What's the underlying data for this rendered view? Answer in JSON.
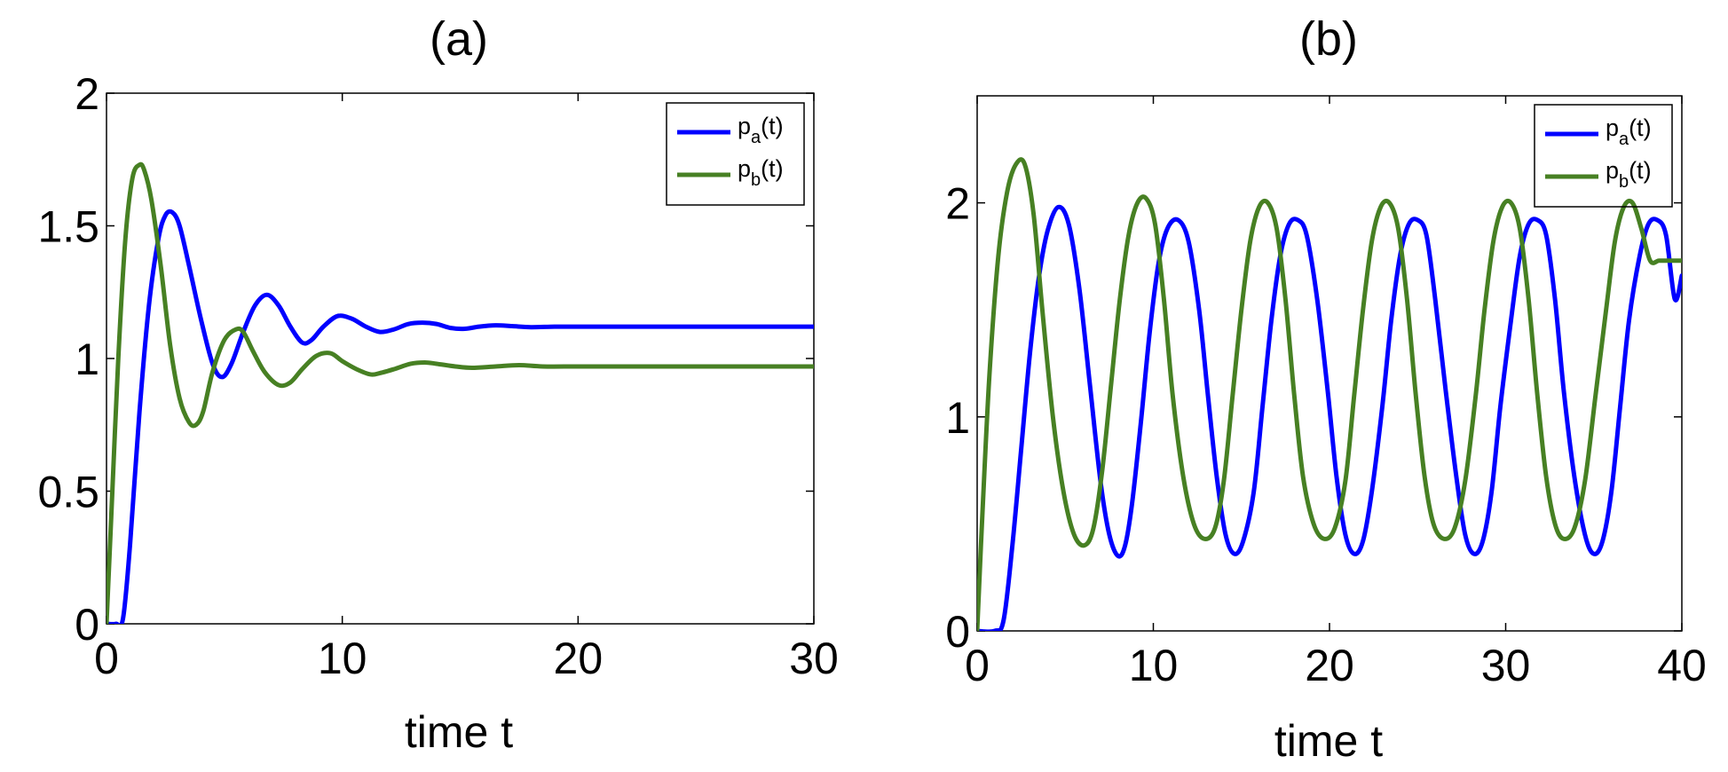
{
  "chart_data": [
    {
      "type": "line",
      "title": "(a)",
      "xlabel": "time t",
      "ylabel": "",
      "xlim": [
        0,
        30
      ],
      "ylim": [
        0,
        2
      ],
      "xticks": [
        0,
        10,
        20,
        30
      ],
      "yticks": [
        0,
        0.5,
        1,
        1.5,
        2
      ],
      "xtick_labels": [
        "0",
        "10",
        "20",
        "30"
      ],
      "ytick_labels": [
        "0",
        "0.5",
        "1",
        "1.5",
        "2"
      ],
      "grid": false,
      "legend_position": "top-right",
      "series": [
        {
          "name": "p_a(t)",
          "legend_main": "p",
          "legend_sub": "a",
          "legend_suffix": "(t)",
          "color": "#0000ff",
          "x": [
            0,
            0.4,
            0.7,
            1.0,
            1.4,
            1.8,
            2.2,
            2.5,
            2.8,
            3.1,
            3.5,
            4.0,
            4.5,
            4.9,
            5.3,
            5.8,
            6.3,
            6.8,
            7.3,
            7.8,
            8.3,
            8.7,
            9.2,
            9.8,
            10.4,
            11.0,
            11.6,
            12.2,
            12.8,
            13.4,
            14.0,
            14.6,
            15.2,
            15.8,
            16.5,
            17.2,
            18.0,
            19.0,
            20.0,
            22.0,
            25.0,
            28.0,
            30.0
          ],
          "y": [
            0,
            0,
            0.02,
            0.3,
            0.8,
            1.2,
            1.45,
            1.54,
            1.55,
            1.5,
            1.35,
            1.15,
            0.98,
            0.93,
            0.98,
            1.1,
            1.2,
            1.24,
            1.2,
            1.12,
            1.06,
            1.07,
            1.12,
            1.16,
            1.15,
            1.12,
            1.1,
            1.11,
            1.13,
            1.135,
            1.13,
            1.115,
            1.112,
            1.12,
            1.125,
            1.122,
            1.118,
            1.12,
            1.12,
            1.12,
            1.12,
            1.12,
            1.12
          ]
        },
        {
          "name": "p_b(t)",
          "legend_main": "p",
          "legend_sub": "b",
          "legend_suffix": "(t)",
          "color": "#478023",
          "x": [
            0,
            0.2,
            0.5,
            0.8,
            1.1,
            1.4,
            1.6,
            1.9,
            2.3,
            2.7,
            3.1,
            3.5,
            3.8,
            4.1,
            4.5,
            5.0,
            5.5,
            5.8,
            6.2,
            6.7,
            7.3,
            7.8,
            8.3,
            8.9,
            9.5,
            10.0,
            10.6,
            11.2,
            11.6,
            12.2,
            12.9,
            13.5,
            14.0,
            14.8,
            15.5,
            16.5,
            17.5,
            18.5,
            20.0,
            22.0,
            25.0,
            28.0,
            30.0
          ],
          "y": [
            0,
            0.4,
            1.0,
            1.45,
            1.68,
            1.73,
            1.71,
            1.6,
            1.35,
            1.05,
            0.85,
            0.76,
            0.75,
            0.8,
            0.95,
            1.07,
            1.11,
            1.1,
            1.03,
            0.95,
            0.9,
            0.91,
            0.96,
            1.01,
            1.02,
            0.99,
            0.96,
            0.94,
            0.945,
            0.96,
            0.98,
            0.985,
            0.98,
            0.97,
            0.965,
            0.97,
            0.975,
            0.97,
            0.97,
            0.97,
            0.97,
            0.97,
            0.97
          ]
        }
      ]
    },
    {
      "type": "line",
      "title": "(b)",
      "xlabel": "time t",
      "ylabel": "",
      "xlim": [
        0,
        40
      ],
      "ylim": [
        0,
        2.5
      ],
      "xticks": [
        0,
        10,
        20,
        30,
        40
      ],
      "yticks": [
        0,
        1,
        2
      ],
      "xtick_labels": [
        "0",
        "10",
        "20",
        "30",
        "40"
      ],
      "ytick_labels": [
        "0",
        "1",
        "2"
      ],
      "grid": false,
      "legend_position": "top-right",
      "series": [
        {
          "name": "p_a(t)",
          "legend_main": "p",
          "legend_sub": "a",
          "legend_suffix": "(t)",
          "color": "#0000ff",
          "x": [
            0,
            1.0,
            1.5,
            2.0,
            2.5,
            3.0,
            3.5,
            4.0,
            4.6,
            5.2,
            5.8,
            6.4,
            7.0,
            7.5,
            8.0,
            8.4,
            8.8,
            9.3,
            9.8,
            10.3,
            10.8,
            11.4,
            12.0,
            12.6,
            13.1,
            13.6,
            14.1,
            14.6,
            15.1,
            15.7,
            16.2,
            16.7,
            17.2,
            17.7,
            18.2,
            18.7,
            19.3,
            19.9,
            20.4,
            20.9,
            21.4,
            21.9,
            22.4,
            23.0,
            23.5,
            24.0,
            24.5,
            25.0,
            25.5,
            26.0,
            26.6,
            27.2,
            27.7,
            28.2,
            28.7,
            29.2,
            29.7,
            30.3,
            30.8,
            31.3,
            31.8,
            32.3,
            32.8,
            33.3,
            33.9,
            34.5,
            35.0,
            35.5,
            36.0,
            36.5,
            37.0,
            37.6,
            38.1,
            38.6,
            39.1,
            39.6,
            40.0
          ],
          "y": [
            0,
            0,
            0.05,
            0.4,
            0.85,
            1.3,
            1.65,
            1.87,
            1.98,
            1.9,
            1.6,
            1.15,
            0.7,
            0.45,
            0.35,
            0.4,
            0.6,
            0.98,
            1.4,
            1.72,
            1.88,
            1.92,
            1.82,
            1.5,
            1.1,
            0.72,
            0.45,
            0.36,
            0.42,
            0.65,
            1.05,
            1.45,
            1.75,
            1.9,
            1.92,
            1.85,
            1.55,
            1.12,
            0.72,
            0.45,
            0.36,
            0.42,
            0.65,
            1.05,
            1.45,
            1.75,
            1.9,
            1.92,
            1.85,
            1.55,
            1.12,
            0.72,
            0.45,
            0.36,
            0.42,
            0.65,
            1.05,
            1.45,
            1.75,
            1.9,
            1.92,
            1.85,
            1.55,
            1.12,
            0.72,
            0.45,
            0.36,
            0.42,
            0.65,
            1.05,
            1.45,
            1.75,
            1.9,
            1.92,
            1.85,
            1.55,
            1.66
          ]
        },
        {
          "name": "p_b(t)",
          "legend_main": "p",
          "legend_sub": "b",
          "legend_suffix": "(t)",
          "color": "#478023",
          "x": [
            0,
            0.3,
            0.7,
            1.2,
            1.7,
            2.2,
            2.7,
            3.2,
            3.7,
            4.3,
            4.9,
            5.5,
            6.1,
            6.6,
            7.1,
            7.6,
            8.1,
            8.6,
            9.1,
            9.6,
            10.1,
            10.6,
            11.1,
            11.7,
            12.3,
            12.9,
            13.5,
            14.0,
            14.5,
            15.0,
            15.5,
            16.0,
            16.5,
            17.0,
            17.5,
            18.0,
            18.5,
            19.1,
            19.7,
            20.3,
            20.9,
            21.4,
            21.9,
            22.4,
            22.9,
            23.4,
            23.9,
            24.4,
            24.9,
            25.4,
            25.9,
            26.5,
            27.1,
            27.7,
            28.3,
            28.8,
            29.3,
            29.8,
            30.3,
            30.8,
            31.3,
            31.8,
            32.3,
            32.8,
            33.3,
            33.9,
            34.5,
            35.1,
            35.7,
            36.2,
            36.7,
            37.2,
            37.7,
            38.2,
            38.7,
            39.2,
            39.7,
            40.0
          ],
          "y": [
            0,
            0.55,
            1.2,
            1.75,
            2.05,
            2.18,
            2.18,
            1.95,
            1.5,
            1.0,
            0.65,
            0.45,
            0.4,
            0.48,
            0.75,
            1.15,
            1.55,
            1.85,
            2.0,
            2.02,
            1.9,
            1.55,
            1.1,
            0.72,
            0.5,
            0.43,
            0.48,
            0.7,
            1.1,
            1.5,
            1.82,
            1.98,
            2.0,
            1.88,
            1.55,
            1.1,
            0.72,
            0.5,
            0.43,
            0.48,
            0.7,
            1.1,
            1.5,
            1.82,
            1.98,
            2.0,
            1.88,
            1.55,
            1.1,
            0.72,
            0.5,
            0.43,
            0.48,
            0.7,
            1.1,
            1.5,
            1.82,
            1.98,
            2.0,
            1.88,
            1.55,
            1.1,
            0.72,
            0.5,
            0.43,
            0.48,
            0.7,
            1.1,
            1.5,
            1.82,
            1.98,
            2.0,
            1.88,
            1.73,
            1.73,
            1.73,
            1.73,
            1.73
          ]
        }
      ]
    }
  ]
}
